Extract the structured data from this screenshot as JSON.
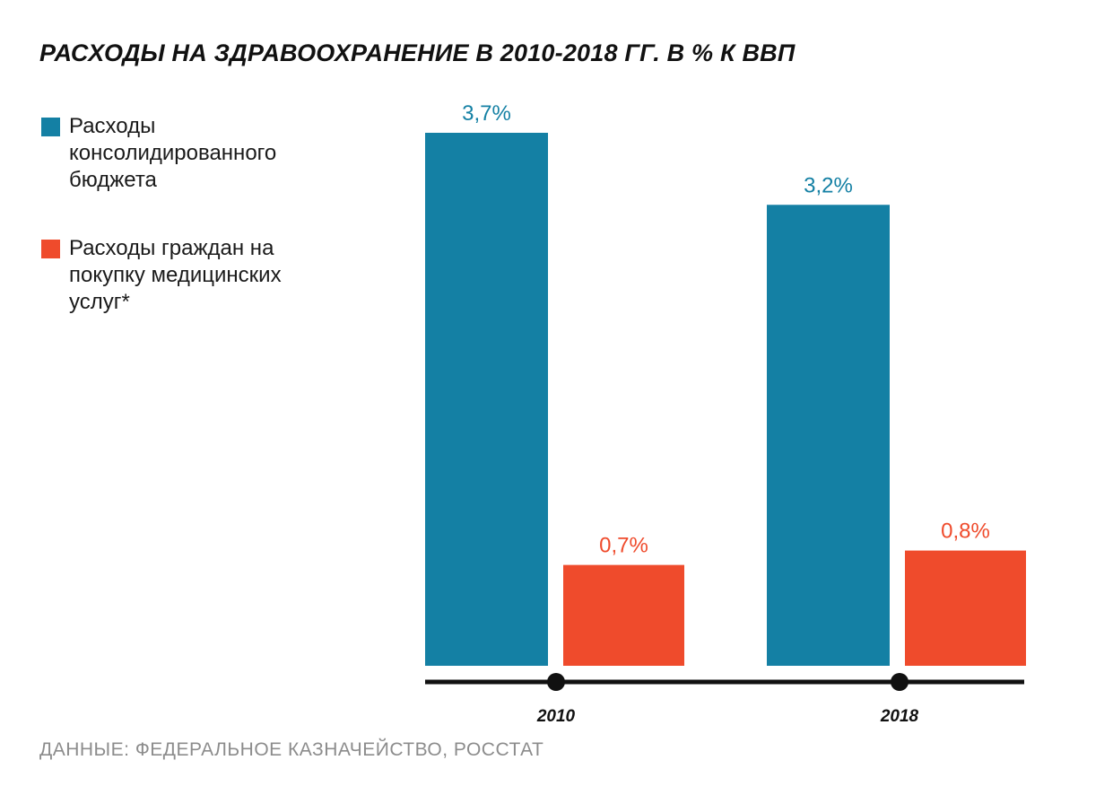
{
  "title": "РАСХОДЫ НА ЗДРАВООХРАНЕНИЕ В 2010-2018 ГГ. В % К ВВП",
  "source": "ДАННЫЕ: ФЕДЕРАЛЬНОЕ КАЗНАЧЕЙСТВО, РОССТАТ",
  "colors": {
    "budget": "#1480a4",
    "citizens": "#ef4b2c",
    "axis": "#111111"
  },
  "chart_data": {
    "type": "bar",
    "title": "РАСХОДЫ НА ЗДРАВООХРАНЕНИЕ В 2010-2018 ГГ. В % К ВВП",
    "categories": [
      "2010",
      "2018"
    ],
    "series": [
      {
        "name": "Расходы консолидированного бюджета",
        "values": [
          3.7,
          3.2
        ],
        "labels": [
          "3,7%",
          "3,2%"
        ],
        "color": "#1480a4"
      },
      {
        "name": "Расходы граждан на покупку медицинских услуг*",
        "values": [
          0.7,
          0.8
        ],
        "labels": [
          "0,7%",
          "0,8%"
        ],
        "color": "#ef4b2c"
      }
    ],
    "ylim": [
      0,
      3.7
    ],
    "grid": false,
    "legend": "left"
  }
}
